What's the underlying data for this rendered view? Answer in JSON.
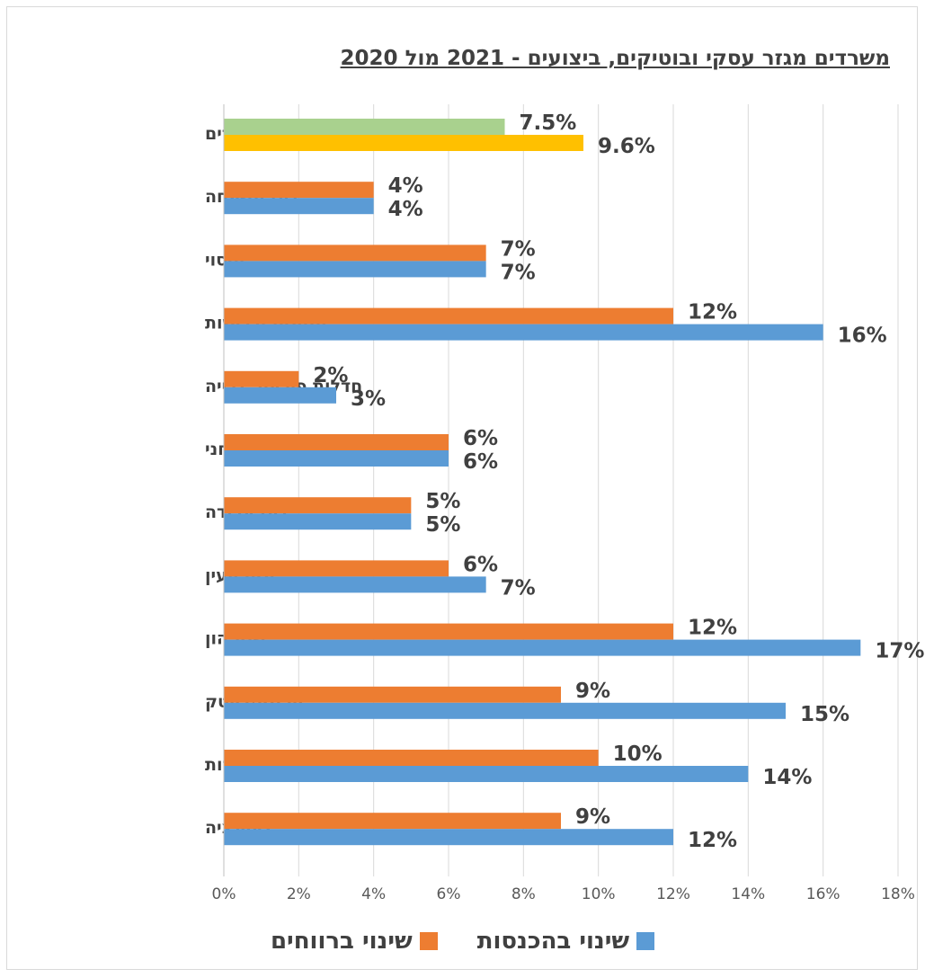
{
  "chart_data": {
    "type": "bar",
    "orientation": "horizontal",
    "title": "משרדים מגזר עסקי ובוטיקים, ביצועים - 2021 מול 2020",
    "categories": [
      "סך כל משרדים",
      "דיני משפחה",
      "מיסוי",
      "מיזוגים ורכישות",
      "חדלות פירעון, גבייה",
      "קניין רוחני",
      "דיני עבודה",
      "מקרקעין",
      "שוק הון",
      "הי טק/ביוטק",
      "חברות",
      "ליטיגציה"
    ],
    "series": [
      {
        "name": "שינוי ברווחים",
        "color": "#ED7D31",
        "values": [
          7.5,
          4,
          7,
          12,
          2,
          6,
          5,
          6,
          12,
          9,
          10,
          9
        ],
        "labels": [
          "7.5%",
          "4%",
          "7%",
          "12%",
          "2%",
          "6%",
          "5%",
          "6%",
          "12%",
          "9%",
          "10%",
          "9%"
        ]
      },
      {
        "name": "שינוי בהכנסות",
        "color": "#5B9BD5",
        "values": [
          9.6,
          4,
          7,
          16,
          3,
          6,
          5,
          7,
          17,
          15,
          14,
          12
        ],
        "labels": [
          "9.6%",
          "4%",
          "7%",
          "16%",
          "3%",
          "6%",
          "5%",
          "7%",
          "17%",
          "15%",
          "14%",
          "12%"
        ]
      }
    ],
    "total_row_colors": {
      "profit": "#A9D18E",
      "revenue": "#FFC000"
    },
    "x_ticks": [
      "0%",
      "2%",
      "4%",
      "6%",
      "8%",
      "10%",
      "12%",
      "14%",
      "16%",
      "18%"
    ],
    "xlim": [
      0,
      18
    ],
    "grid": true,
    "legend_position": "bottom"
  }
}
